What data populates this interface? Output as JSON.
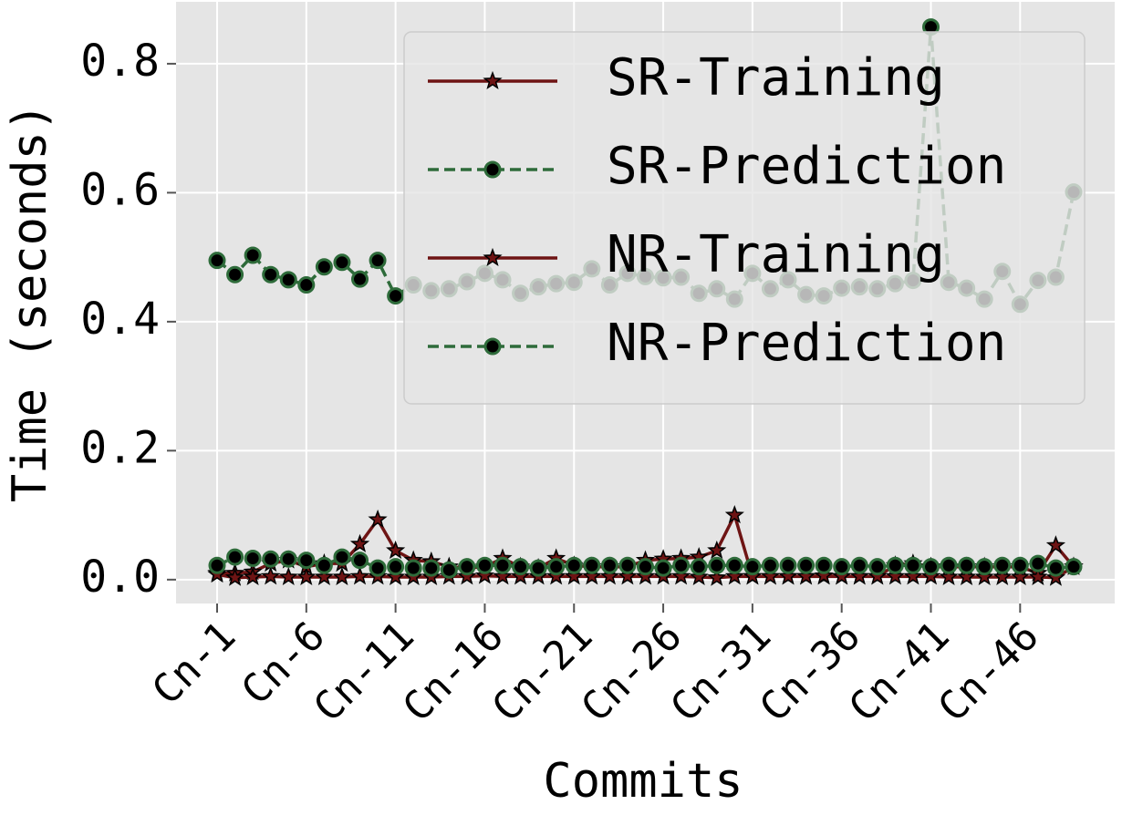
{
  "chart_data": {
    "type": "line",
    "x_label": "Commits",
    "y_label": "Time (seconds)",
    "categories": [
      "Cn-1",
      null,
      null,
      null,
      null,
      "Cn-6",
      null,
      null,
      null,
      null,
      "Cn-11",
      null,
      null,
      null,
      null,
      "Cn-16",
      null,
      null,
      null,
      null,
      "Cn-21",
      null,
      null,
      null,
      null,
      "Cn-26",
      null,
      null,
      null,
      null,
      "Cn-31",
      null,
      null,
      null,
      null,
      "Cn-36",
      null,
      null,
      null,
      null,
      "Cn-41",
      null,
      null,
      null,
      null,
      "Cn-46",
      null,
      null,
      null
    ],
    "series": [
      {
        "name": "SR-Training",
        "color": "#6e1414",
        "marker": "star",
        "dash": false,
        "values": [
          0.01,
          0.01,
          0.012,
          0.025,
          0.03,
          0.02,
          0.025,
          0.025,
          0.055,
          0.093,
          0.045,
          0.03,
          0.028,
          0.02,
          0.018,
          0.02,
          0.033,
          0.02,
          0.018,
          0.033,
          0.022,
          0.02,
          0.02,
          0.02,
          0.03,
          0.032,
          0.033,
          0.035,
          0.045,
          0.1,
          0.005,
          0.005,
          0.005,
          0.005,
          0.005,
          0.005,
          0.005,
          0.005,
          0.022,
          0.025,
          0.02,
          0.02,
          0.02,
          0.02,
          0.02,
          0.02,
          0.01,
          0.053,
          0.02
        ]
      },
      {
        "name": "SR-Prediction",
        "color": "#2e6b3a",
        "marker": "circle",
        "dash": true,
        "values": [
          0.495,
          0.473,
          0.503,
          0.473,
          0.465,
          0.457,
          0.485,
          0.492,
          0.466,
          0.495,
          0.44,
          0.457,
          0.448,
          0.451,
          0.462,
          0.475,
          0.465,
          0.444,
          0.454,
          0.459,
          0.461,
          0.482,
          0.457,
          0.475,
          0.47,
          0.468,
          0.469,
          0.444,
          0.451,
          0.435,
          0.475,
          0.451,
          0.465,
          0.442,
          0.44,
          0.452,
          0.454,
          0.451,
          0.459,
          0.464,
          0.857,
          0.461,
          0.452,
          0.435,
          0.478,
          0.427,
          0.464,
          0.469,
          0.601
        ]
      },
      {
        "name": "NR-Training",
        "color": "#6e1414",
        "marker": "star",
        "dash": false,
        "values": [
          0.008,
          0.003,
          0.004,
          0.005,
          0.004,
          0.004,
          0.004,
          0.004,
          0.005,
          0.005,
          0.004,
          0.004,
          0.004,
          0.005,
          0.005,
          0.006,
          0.005,
          0.005,
          0.005,
          0.005,
          0.005,
          0.005,
          0.005,
          0.005,
          0.005,
          0.005,
          0.005,
          0.004,
          0.003,
          0.005,
          0.005,
          0.005,
          0.005,
          0.005,
          0.006,
          0.005,
          0.005,
          0.005,
          0.005,
          0.005,
          0.005,
          0.004,
          0.004,
          0.004,
          0.004,
          0.004,
          0.004,
          0.003,
          0.02
        ]
      },
      {
        "name": "NR-Prediction",
        "color": "#2e6b3a",
        "marker": "circle",
        "dash": true,
        "values": [
          0.022,
          0.035,
          0.033,
          0.032,
          0.032,
          0.03,
          0.022,
          0.035,
          0.03,
          0.018,
          0.02,
          0.018,
          0.018,
          0.015,
          0.02,
          0.022,
          0.022,
          0.02,
          0.018,
          0.02,
          0.022,
          0.022,
          0.022,
          0.022,
          0.02,
          0.018,
          0.022,
          0.02,
          0.022,
          0.022,
          0.02,
          0.022,
          0.022,
          0.022,
          0.022,
          0.02,
          0.022,
          0.02,
          0.022,
          0.022,
          0.02,
          0.022,
          0.022,
          0.02,
          0.022,
          0.022,
          0.025,
          0.018,
          0.02
        ]
      }
    ],
    "ylim": [
      -0.037,
      0.896
    ],
    "yticks": [
      {
        "value": 0,
        "label": "0.0"
      },
      0.2,
      0.4,
      0.6,
      0.8
    ],
    "grid": true,
    "legend": "upper right"
  }
}
